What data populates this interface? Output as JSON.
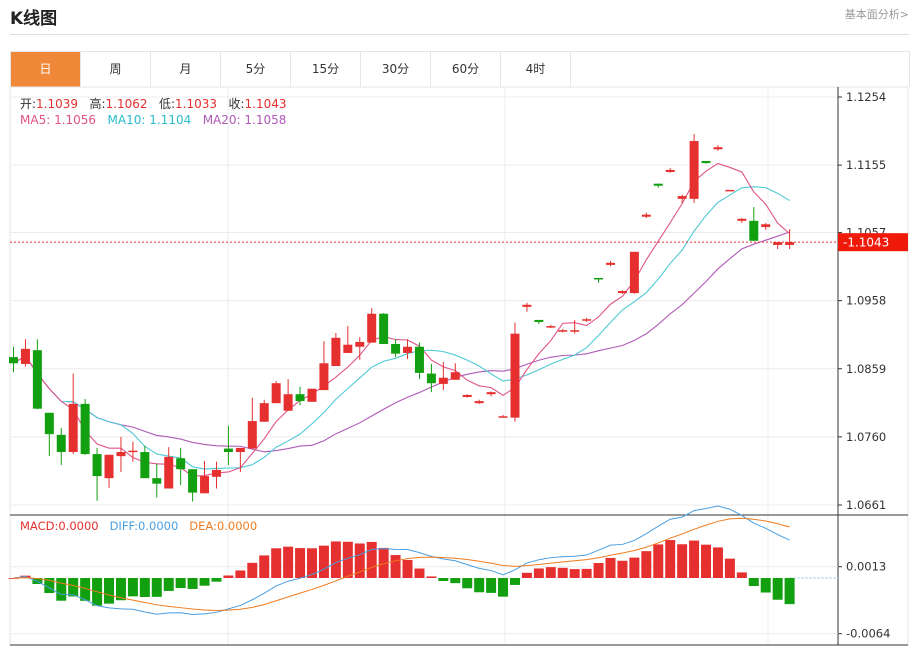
{
  "header": {
    "title": "K线图",
    "link": "基本面分析>"
  },
  "tabs": [
    {
      "label": "日",
      "active": true
    },
    {
      "label": "周"
    },
    {
      "label": "月"
    },
    {
      "label": "5分"
    },
    {
      "label": "15分"
    },
    {
      "label": "30分"
    },
    {
      "label": "60分"
    },
    {
      "label": "4时"
    }
  ],
  "ohlc_info": {
    "open_label": "开:",
    "open": "1.1039",
    "high_label": "高:",
    "high": "1.1062",
    "low_label": "低:",
    "low": "1.1033",
    "close_label": "收:",
    "close": "1.1043"
  },
  "ma_info": {
    "ma5_label": "MA5:",
    "ma5": "1.1056",
    "ma10_label": "MA10:",
    "ma10": "1.1104",
    "ma20_label": "MA20:",
    "ma20": "1.1058"
  },
  "macd_info": {
    "macd_label": "MACD:",
    "macd": "0.0000",
    "diff_label": "DIFF:",
    "diff": "0.0000",
    "dea_label": "DEA:",
    "dea": "0.0000"
  },
  "current_price": "1.1043",
  "colors": {
    "up": "#e5302f",
    "down": "#13a010",
    "ma5": "#e0528a",
    "ma10": "#4fc9d6",
    "ma20": "#b05ab8",
    "diff": "#4a9ee0",
    "dea": "#f07b1e",
    "accent": "#f0883a"
  },
  "chart_data": {
    "type": "candlestick",
    "y_ticks": [
      "1.1254",
      "1.1155",
      "1.1057",
      "1.0958",
      "1.0859",
      "1.0760",
      "1.0661"
    ],
    "ylim": [
      1.0661,
      1.1254
    ],
    "macd_ticks": [
      "0.0013",
      "-0.0064"
    ],
    "candles": [
      [
        1.0876,
        1.0891,
        1.0854,
        1.0867
      ],
      [
        1.0866,
        1.0902,
        1.0862,
        1.0888
      ],
      [
        1.0886,
        1.0902,
        1.08,
        1.0801
      ],
      [
        1.0795,
        1.0795,
        1.0732,
        1.0764
      ],
      [
        1.0763,
        1.0773,
        1.0719,
        1.0738
      ],
      [
        1.0738,
        1.0852,
        1.0735,
        1.0808
      ],
      [
        1.0808,
        1.0815,
        1.0734,
        1.0735
      ],
      [
        1.0735,
        1.0744,
        1.0667,
        1.0703
      ],
      [
        1.07,
        1.0734,
        1.0686,
        1.0734
      ],
      [
        1.0732,
        1.076,
        1.0709,
        1.0738
      ],
      [
        1.0738,
        1.0753,
        1.0724,
        1.074
      ],
      [
        1.0738,
        1.0747,
        1.07,
        1.07
      ],
      [
        1.07,
        1.0721,
        1.0672,
        1.0692
      ],
      [
        1.0685,
        1.0745,
        1.0685,
        1.0731
      ],
      [
        1.0729,
        1.0744,
        1.069,
        1.0713
      ],
      [
        1.0713,
        1.0713,
        1.0666,
        1.0679
      ],
      [
        1.0678,
        1.0725,
        1.0678,
        1.0703
      ],
      [
        1.0702,
        1.0724,
        1.0685,
        1.0712
      ],
      [
        1.0743,
        1.0776,
        1.0719,
        1.0738
      ],
      [
        1.0738,
        1.0744,
        1.0709,
        1.0744
      ],
      [
        1.0743,
        1.0817,
        1.0743,
        1.0783
      ],
      [
        1.0782,
        1.0814,
        1.0782,
        1.0809
      ],
      [
        1.0809,
        1.0841,
        1.0809,
        1.0838
      ],
      [
        1.0798,
        1.0844,
        1.0798,
        1.0822
      ],
      [
        1.0822,
        1.0833,
        1.0806,
        1.0812
      ],
      [
        1.0811,
        1.083,
        1.0811,
        1.083
      ],
      [
        1.0828,
        1.0899,
        1.0828,
        1.0867
      ],
      [
        1.0863,
        1.0911,
        1.0863,
        1.0904
      ],
      [
        1.0882,
        1.0921,
        1.0882,
        1.0894
      ],
      [
        1.0891,
        1.0905,
        1.0872,
        1.0898
      ],
      [
        1.0897,
        1.0947,
        1.0897,
        1.0939
      ],
      [
        1.0939,
        1.094,
        1.0895,
        1.0895
      ],
      [
        1.0895,
        1.0902,
        1.0876,
        1.0881
      ],
      [
        1.0882,
        1.0902,
        1.0873,
        1.0891
      ],
      [
        1.0891,
        1.0897,
        1.0844,
        1.0853
      ],
      [
        1.0852,
        1.0866,
        1.0825,
        1.0838
      ],
      [
        1.0837,
        1.0869,
        1.0828,
        1.0846
      ],
      [
        1.0843,
        1.0867,
        1.0843,
        1.0854
      ],
      [
        1.0818,
        1.0822,
        1.0817,
        1.0821
      ],
      [
        1.0809,
        1.0814,
        1.0808,
        1.0812
      ],
      [
        1.0822,
        1.0826,
        1.0819,
        1.0825
      ],
      [
        1.0789,
        1.0792,
        1.0788,
        1.079
      ],
      [
        1.0788,
        1.0926,
        1.0782,
        1.091
      ],
      [
        1.0949,
        1.0955,
        1.0942,
        1.0952
      ],
      [
        1.093,
        1.093,
        1.0924,
        1.0927
      ],
      [
        1.092,
        1.0923,
        1.0918,
        1.0921
      ],
      [
        1.0913,
        1.0917,
        1.0912,
        1.0915
      ],
      [
        1.0913,
        1.093,
        1.091,
        1.0915
      ],
      [
        1.0929,
        1.0933,
        1.0927,
        1.0931
      ],
      [
        1.0991,
        1.0991,
        1.0984,
        1.099
      ],
      [
        1.101,
        1.1016,
        1.1008,
        1.1013
      ],
      [
        1.0969,
        1.0973,
        1.0968,
        1.0972
      ],
      [
        1.0969,
        1.1029,
        1.0968,
        1.1029
      ],
      [
        1.108,
        1.1086,
        1.1078,
        1.1083
      ],
      [
        1.1128,
        1.1128,
        1.1122,
        1.1125
      ],
      [
        1.1145,
        1.1151,
        1.1144,
        1.1148
      ],
      [
        1.1106,
        1.1112,
        1.11,
        1.111
      ],
      [
        1.1106,
        1.12,
        1.11,
        1.119
      ],
      [
        1.1161,
        1.1161,
        1.1157,
        1.1158
      ],
      [
        1.1178,
        1.1184,
        1.1176,
        1.1181
      ],
      [
        1.1117,
        1.1119,
        1.1117,
        1.1119
      ],
      [
        1.1074,
        1.1078,
        1.1071,
        1.1077
      ],
      [
        1.1074,
        1.1094,
        1.1045,
        1.1045
      ],
      [
        1.1065,
        1.1071,
        1.1061,
        1.1069
      ],
      [
        1.1039,
        1.1043,
        1.1033,
        1.1043
      ],
      [
        1.1039,
        1.1062,
        1.1033,
        1.1043
      ]
    ]
  }
}
